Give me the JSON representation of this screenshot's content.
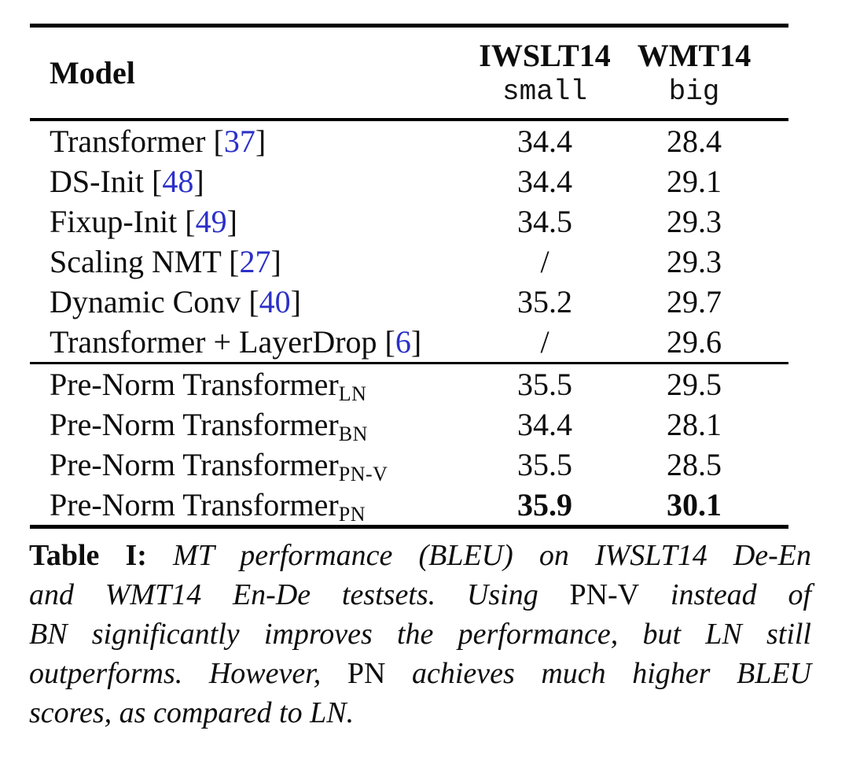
{
  "table": {
    "columns": [
      {
        "label": "Model"
      },
      {
        "label": "IWSLT14",
        "sub": "small"
      },
      {
        "label": "WMT14",
        "sub": "big"
      }
    ],
    "groups": [
      {
        "rows": [
          {
            "model": "Transformer",
            "cite": "37",
            "iwslt": "34.4",
            "wmt": "28.4"
          },
          {
            "model": "DS-Init",
            "cite": "48",
            "iwslt": "34.4",
            "wmt": "29.1"
          },
          {
            "model": "Fixup-Init",
            "cite": "49",
            "iwslt": "34.5",
            "wmt": "29.3"
          },
          {
            "model": "Scaling NMT",
            "cite": "27",
            "iwslt": "/",
            "wmt": "29.3"
          },
          {
            "model": "Dynamic Conv",
            "cite": "40",
            "iwslt": "35.2",
            "wmt": "29.7"
          },
          {
            "model": "Transformer + LayerDrop",
            "cite": "6",
            "iwslt": "/",
            "wmt": "29.6"
          }
        ]
      },
      {
        "rows": [
          {
            "model": "Pre-Norm Transformer",
            "subscript": "LN",
            "iwslt": "35.5",
            "wmt": "29.5"
          },
          {
            "model": "Pre-Norm Transformer",
            "subscript": "BN",
            "iwslt": "34.4",
            "wmt": "28.1"
          },
          {
            "model": "Pre-Norm Transformer",
            "subscript": "PN-V",
            "iwslt": "35.5",
            "wmt": "28.5"
          },
          {
            "model": "Pre-Norm Transformer",
            "subscript": "PN",
            "iwslt": "35.9",
            "wmt": "30.1",
            "bold": true
          }
        ]
      }
    ]
  },
  "caption": {
    "lines": [
      {
        "segments": [
          {
            "text": "Table I:",
            "style": "bold"
          },
          {
            "text": " MT performance (BLEU) on IWSLT14 De-En",
            "style": "italic"
          }
        ]
      },
      {
        "segments": [
          {
            "text": "and WMT14 En-De testsets. Using ",
            "style": "italic"
          },
          {
            "text": "PN-V",
            "style": "upright"
          },
          {
            "text": " instead of",
            "style": "italic"
          }
        ]
      },
      {
        "segments": [
          {
            "text": "BN significantly improves the performance, but LN still",
            "style": "italic"
          }
        ]
      },
      {
        "segments": [
          {
            "text": "outperforms. However, ",
            "style": "italic"
          },
          {
            "text": "PN",
            "style": "upright"
          },
          {
            "text": " achieves much higher BLEU",
            "style": "italic"
          }
        ]
      },
      {
        "segments": [
          {
            "text": "scores, as compared to LN.",
            "style": "italic"
          }
        ]
      }
    ]
  },
  "colors": {
    "citation_blue": "#2B30C8",
    "rule_black": "#000000",
    "text": "#0d0d0d",
    "background": "#ffffff"
  }
}
